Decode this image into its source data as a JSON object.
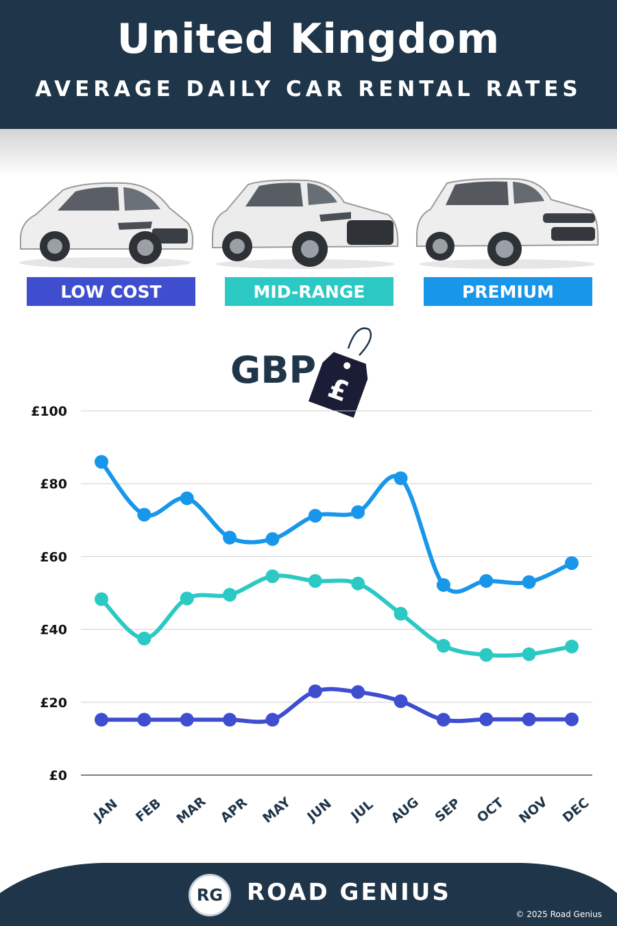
{
  "header": {
    "title": "United Kingdom",
    "subtitle": "AVERAGE DAILY CAR RENTAL RATES"
  },
  "categories": [
    {
      "label": "LOW COST",
      "color": "#3e4ecf",
      "icon": "hatchback-car-icon"
    },
    {
      "label": "MID-RANGE",
      "color": "#2cc9c4",
      "icon": "suv-car-icon"
    },
    {
      "label": "PREMIUM",
      "color": "#1896ea",
      "icon": "luxury-suv-car-icon"
    }
  ],
  "currency": {
    "label": "GBP",
    "tag_symbol": "£",
    "icon": "price-tag-icon"
  },
  "chart_data": {
    "type": "line",
    "categories": [
      "JAN",
      "FEB",
      "MAR",
      "APR",
      "MAY",
      "JUN",
      "JUL",
      "AUG",
      "SEP",
      "OCT",
      "NOV",
      "DEC"
    ],
    "series": [
      {
        "name": "PREMIUM",
        "color": "#1896ea",
        "values": [
          86,
          71.5,
          76,
          65.2,
          64.8,
          71.2,
          72.2,
          81.5,
          52.2,
          53.3,
          53,
          58.2
        ]
      },
      {
        "name": "MID-RANGE",
        "color": "#2cc9c4",
        "values": [
          48.3,
          37.5,
          48.5,
          49.5,
          54.6,
          53.3,
          52.6,
          44.3,
          35.5,
          33,
          33.2,
          35.3
        ]
      },
      {
        "name": "LOW COST",
        "color": "#3e4ecf",
        "values": [
          15.2,
          15.2,
          15.2,
          15.2,
          15.2,
          23,
          22.8,
          20.3,
          15.2,
          15.3,
          15.3,
          15.3
        ]
      }
    ],
    "ylim": [
      0,
      100
    ],
    "yticks": [
      0,
      20,
      40,
      60,
      80,
      100
    ],
    "ytick_labels": [
      "£0",
      "£20",
      "£40",
      "£60",
      "£80",
      "£100"
    ],
    "grid": true,
    "xlabel": "",
    "ylabel": ""
  },
  "footer": {
    "brand": "ROAD GENIUS",
    "logo_text": "RG",
    "copyright": "© 2025 Road Genius",
    "background": "#1f3549"
  }
}
